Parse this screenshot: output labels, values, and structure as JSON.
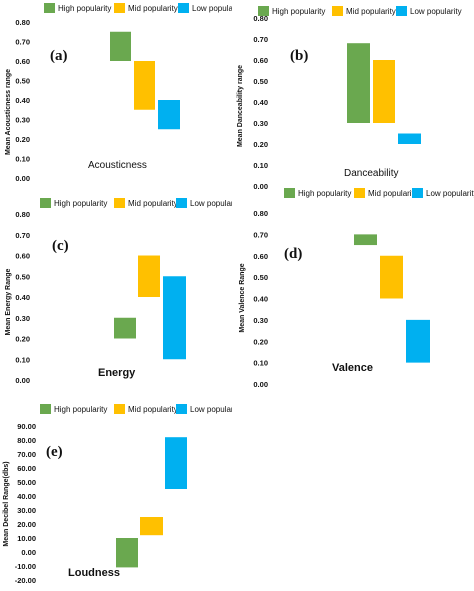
{
  "legend": [
    {
      "label": "High popularity",
      "color": "#6aa84f"
    },
    {
      "label": "Mid popularity",
      "color": "#ffc000"
    },
    {
      "label": "Low popularity",
      "color": "#00b0f0"
    }
  ],
  "chart_data": [
    {
      "type": "bar",
      "panel_label": "(a)",
      "metric_label": "Acousticness",
      "ylabel": "Mean Acousticness range",
      "ylim": [
        0,
        0.8
      ],
      "yticks": [
        "0.00",
        "0.10",
        "0.20",
        "0.30",
        "0.40",
        "0.50",
        "0.60",
        "0.70",
        "0.80"
      ],
      "series": [
        {
          "name": "High popularity",
          "range": [
            0.6,
            0.75
          ]
        },
        {
          "name": "Mid popularity",
          "range": [
            0.35,
            0.6
          ]
        },
        {
          "name": "Low popularity",
          "range": [
            0.25,
            0.4
          ]
        }
      ]
    },
    {
      "type": "bar",
      "panel_label": "(b)",
      "metric_label": "Danceability",
      "ylabel": "Mean Danceability range",
      "ylim": [
        0,
        0.8
      ],
      "yticks": [
        "0.00",
        "0.10",
        "0.20",
        "0.30",
        "0.40",
        "0.50",
        "0.60",
        "0.70",
        "0.80"
      ],
      "series": [
        {
          "name": "High popularity",
          "range": [
            0.3,
            0.68
          ]
        },
        {
          "name": "Mid popularity",
          "range": [
            0.3,
            0.6
          ]
        },
        {
          "name": "Low popularity",
          "range": [
            0.2,
            0.25
          ]
        }
      ]
    },
    {
      "type": "bar",
      "panel_label": "(c)",
      "metric_label": "Energy",
      "ylabel": "Mean Energy Range",
      "ylim": [
        0,
        0.8
      ],
      "yticks": [
        "0.00",
        "0.10",
        "0.20",
        "0.30",
        "0.40",
        "0.50",
        "0.60",
        "0.70",
        "0.80"
      ],
      "series": [
        {
          "name": "High popularity",
          "range": [
            0.2,
            0.3
          ]
        },
        {
          "name": "Mid popularity",
          "range": [
            0.4,
            0.6
          ]
        },
        {
          "name": "Low popularity",
          "range": [
            0.1,
            0.5
          ]
        }
      ]
    },
    {
      "type": "bar",
      "panel_label": "(d)",
      "metric_label": "Valence",
      "ylabel": "Mean Valence Range",
      "ylim": [
        0,
        0.8
      ],
      "yticks": [
        "0.00",
        "0.10",
        "0.20",
        "0.30",
        "0.40",
        "0.50",
        "0.60",
        "0.70",
        "0.80"
      ],
      "series": [
        {
          "name": "High popularity",
          "range": [
            0.65,
            0.7
          ]
        },
        {
          "name": "Mid popularity",
          "range": [
            0.4,
            0.6
          ]
        },
        {
          "name": "Low popularity",
          "range": [
            0.1,
            0.3
          ]
        }
      ]
    },
    {
      "type": "bar",
      "panel_label": "(e)",
      "metric_label": "Loudness",
      "ylabel": "Mean Decibel Range(dbs)",
      "ylim": [
        -20,
        90
      ],
      "yticks": [
        "-20.00",
        "-10.00",
        "0.00",
        "10.00",
        "20.00",
        "30.00",
        "40.00",
        "50.00",
        "60.00",
        "70.00",
        "80.00",
        "90.00"
      ],
      "series": [
        {
          "name": "High popularity",
          "range": [
            -11,
            10
          ]
        },
        {
          "name": "Mid popularity",
          "range": [
            12,
            25
          ]
        },
        {
          "name": "Low popularity",
          "range": [
            45,
            82
          ]
        }
      ]
    }
  ]
}
